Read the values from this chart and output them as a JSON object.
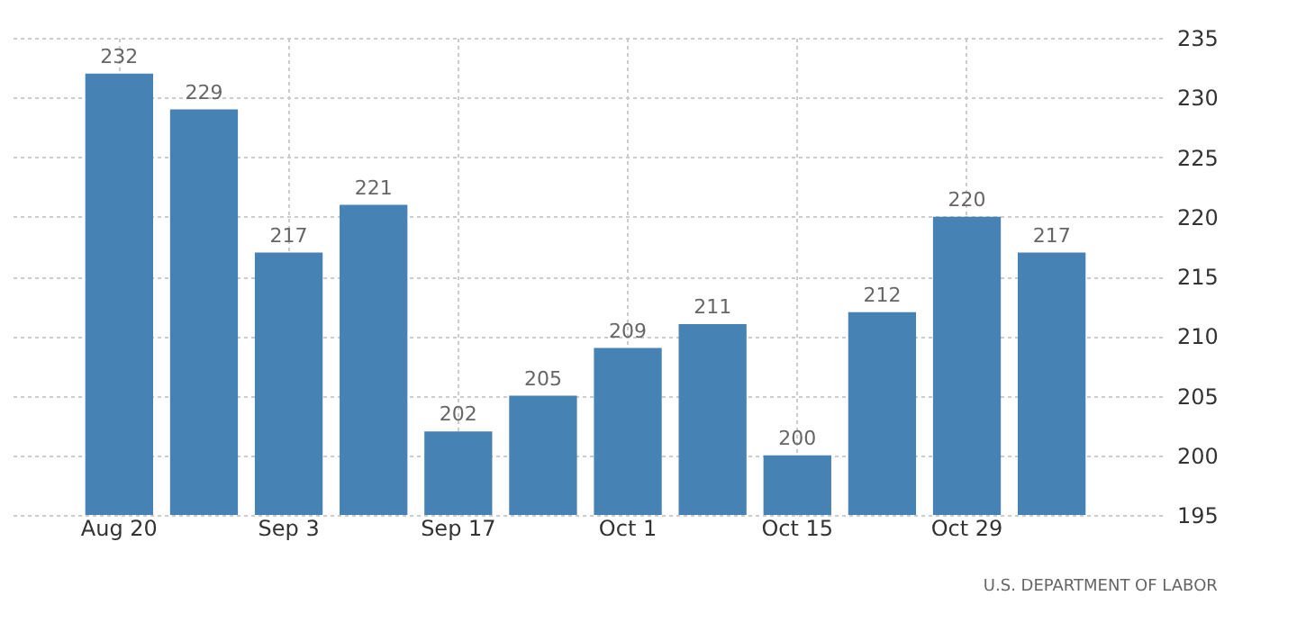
{
  "chart_data": {
    "type": "bar",
    "categories": [
      "Aug 20",
      null,
      "Sep 3",
      null,
      "Sep 17",
      null,
      "Oct 1",
      null,
      "Oct 15",
      null,
      "Oct 29",
      null
    ],
    "values": [
      232,
      229,
      217,
      221,
      202,
      205,
      209,
      211,
      200,
      212,
      220,
      217
    ],
    "color": "#4682b4",
    "ylim": [
      195,
      235
    ],
    "yticks": [
      195,
      200,
      205,
      210,
      215,
      220,
      225,
      230,
      235
    ],
    "grid": true,
    "data_labels": true,
    "annotations": [
      "U.S. DEPARTMENT OF LABOR"
    ]
  }
}
